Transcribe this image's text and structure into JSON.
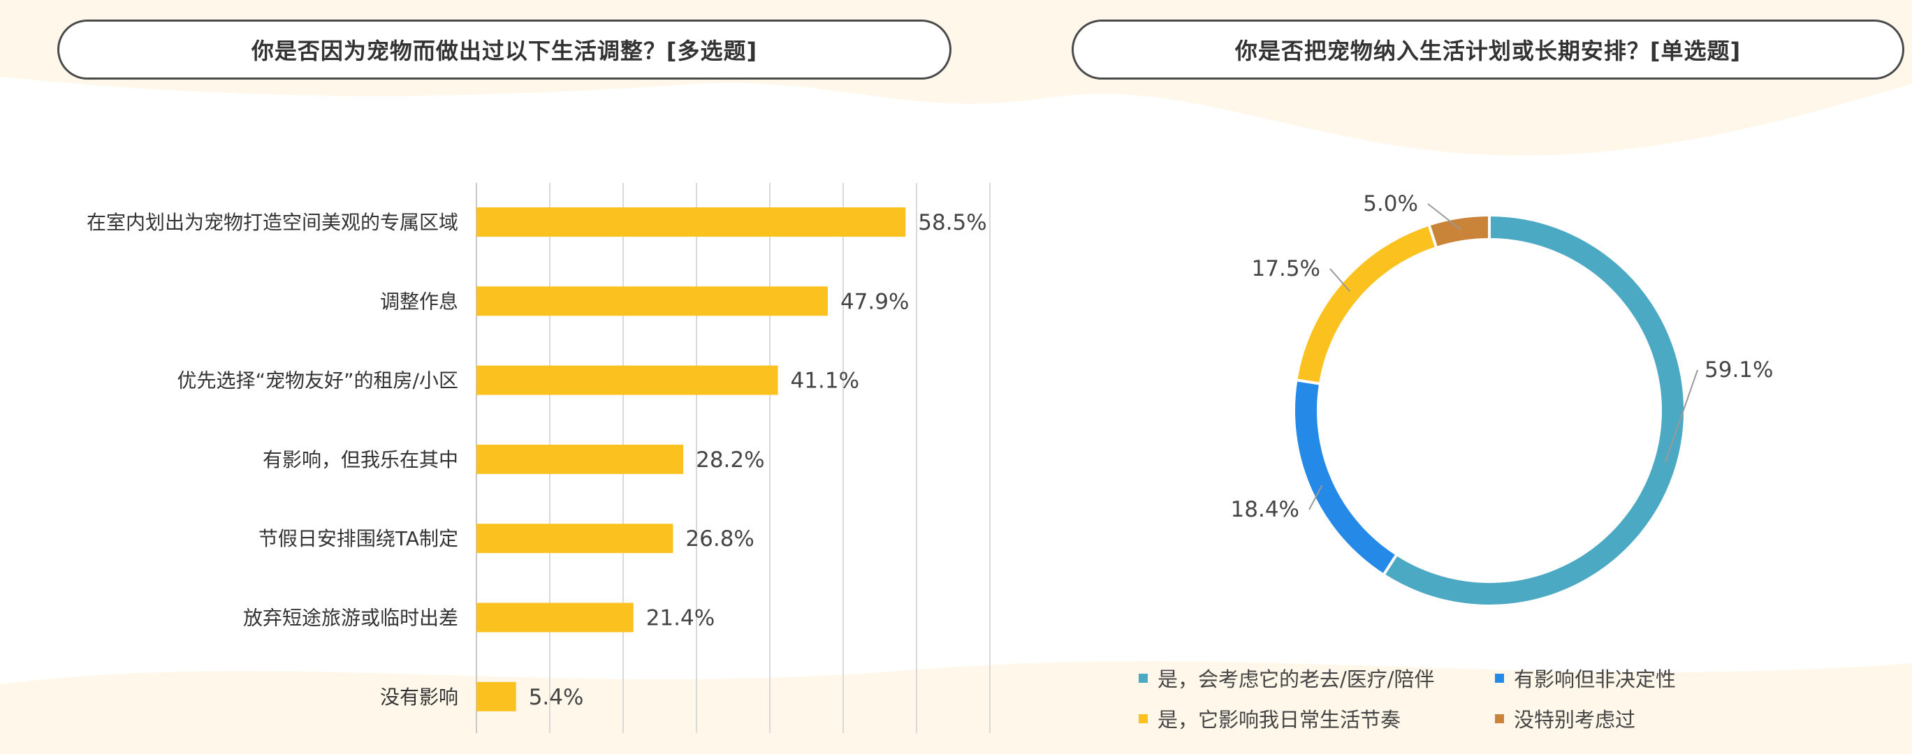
{
  "bar_title": "你是否因为宠物而做出过以下生活调整？[多选题]",
  "donut_title": "你是否把宠物纳入生活计划或长期安排？[单选题]",
  "colors": {
    "bar": "#FBC21F",
    "donut": [
      "#4BA9C3",
      "#2589E8",
      "#FBC21F",
      "#C98439"
    ]
  },
  "chart_data": [
    {
      "type": "bar",
      "orientation": "horizontal",
      "title": "你是否因为宠物而做出过以下生活调整？[多选题]",
      "categories": [
        "在室内划出为宠物打造空间美观的专属区域",
        "调整作息",
        "优先选择“宠物友好”的租房/小区",
        "有影响，但我乐在其中",
        "节假日安排围绕TA制定",
        "放弃短途旅游或临时出差",
        "没有影响"
      ],
      "values": [
        58.5,
        47.9,
        41.1,
        28.2,
        26.8,
        21.4,
        5.4
      ],
      "value_labels": [
        "58.5%",
        "47.9%",
        "41.1%",
        "28.2%",
        "26.8%",
        "21.4%",
        "5.4%"
      ],
      "xlim": [
        0,
        70
      ],
      "grid": true
    },
    {
      "type": "pie",
      "donut": true,
      "title": "你是否把宠物纳入生活计划或长期安排？[单选题]",
      "categories": [
        "是，会考虑它的老去/医疗/陪伴",
        "有影响但非决定性",
        "是，它影响我日常生活节奏",
        "没特别考虑过"
      ],
      "values": [
        59.1,
        18.4,
        17.5,
        5.0
      ],
      "value_labels": [
        "59.1%",
        "18.4%",
        "17.5%",
        "5.0%"
      ],
      "legend": "bottom"
    }
  ]
}
